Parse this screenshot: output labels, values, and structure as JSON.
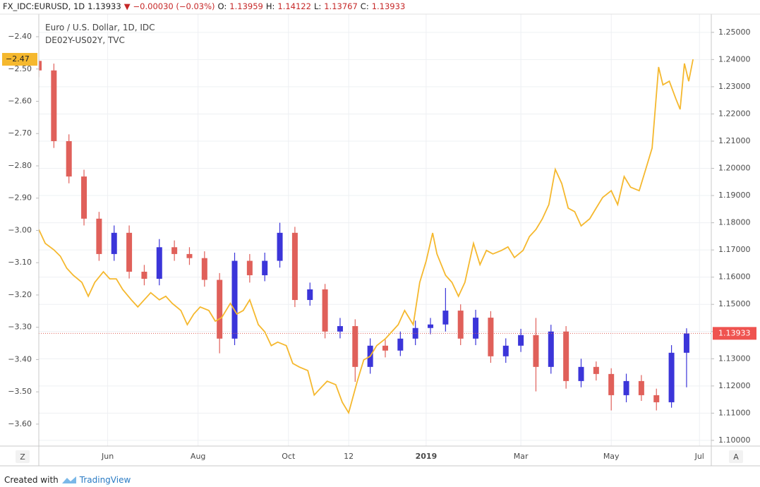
{
  "header": {
    "symbol": "FX_IDC:EURUSD, 1D",
    "price": "1.13933",
    "arrow": "▼",
    "change": "−0.00030 (−0.03%)",
    "o_label": "O:",
    "o": "1.13959",
    "h_label": "H:",
    "h": "1.14122",
    "l_label": "L:",
    "l": "1.13767",
    "c_label": "C:",
    "c": "1.13933"
  },
  "buttons": {
    "left": "Z",
    "right": "A"
  },
  "footer": {
    "text": "Created with",
    "brand": "TradingView"
  },
  "chart_data": {
    "type": "candlestick",
    "xlim": [
      0,
      312.5
    ],
    "xticks": [
      {
        "value": 32,
        "label": "Jun"
      },
      {
        "value": 74,
        "label": "Aug"
      },
      {
        "value": 116,
        "label": "Oct"
      },
      {
        "value": 144,
        "label": "12"
      },
      {
        "value": 180,
        "label": "2019"
      },
      {
        "value": 224,
        "label": "Mar"
      },
      {
        "value": 266,
        "label": "May"
      },
      {
        "value": 307,
        "label": "Jul"
      }
    ],
    "ylim": [
      -3.668,
      -2.33
    ],
    "yticks": [
      {
        "value": -2.4,
        "label": "−2.40"
      },
      {
        "value": -2.5,
        "label": "−2.50"
      },
      {
        "value": -2.6,
        "label": "−2.60"
      },
      {
        "value": -2.7,
        "label": "−2.70"
      },
      {
        "value": -2.8,
        "label": "−2.80"
      },
      {
        "value": -2.9,
        "label": "−2.90"
      },
      {
        "value": -3.0,
        "label": "−3.00"
      },
      {
        "value": -3.1,
        "label": "−3.10"
      },
      {
        "value": -3.2,
        "label": "−3.20"
      },
      {
        "value": -3.3,
        "label": "−3.30"
      },
      {
        "value": -3.4,
        "label": "−3.40"
      },
      {
        "value": -3.5,
        "label": "−3.50"
      },
      {
        "value": -3.6,
        "label": "−3.60"
      }
    ],
    "y2lim": [
      1.0979,
      1.2567
    ],
    "y2ticks": [
      {
        "value": 1.25,
        "label": "1.25000"
      },
      {
        "value": 1.24,
        "label": "1.24000"
      },
      {
        "value": 1.23,
        "label": "1.23000"
      },
      {
        "value": 1.22,
        "label": "1.22000"
      },
      {
        "value": 1.21,
        "label": "1.21000"
      },
      {
        "value": 1.2,
        "label": "1.20000"
      },
      {
        "value": 1.19,
        "label": "1.19000"
      },
      {
        "value": 1.18,
        "label": "1.18000"
      },
      {
        "value": 1.17,
        "label": "1.17000"
      },
      {
        "value": 1.16,
        "label": "1.16000"
      },
      {
        "value": 1.15,
        "label": "1.15000"
      },
      {
        "value": 1.14,
        "label": "1.14000"
      },
      {
        "value": 1.13,
        "label": "1.13000"
      },
      {
        "value": 1.12,
        "label": "1.12000"
      },
      {
        "value": 1.11,
        "label": "1.11000"
      },
      {
        "value": 1.1,
        "label": "1.10000"
      }
    ],
    "grid": true,
    "series": [
      {
        "name": "Euro / U.S. Dollar, 1D, IDC",
        "axis": "y2",
        "up_color": "#3b35d9",
        "down_color": "#e0605a",
        "last": {
          "value": 1.13933,
          "label": "1.13933"
        },
        "x": [
          0,
          7,
          14,
          21,
          28,
          35,
          42,
          49,
          56,
          63,
          70,
          77,
          84,
          91,
          98,
          105,
          112,
          119,
          126,
          133,
          140,
          147,
          154,
          161,
          168,
          175,
          182,
          189,
          196,
          203,
          210,
          217,
          224,
          231,
          238,
          245,
          252,
          259,
          266,
          273,
          280,
          287,
          294,
          301
        ],
        "open": [
          1.2395,
          1.236,
          1.21,
          1.197,
          1.1815,
          1.1685,
          1.1763,
          1.162,
          1.1594,
          1.171,
          1.1685,
          1.167,
          1.159,
          1.1374,
          1.166,
          1.1607,
          1.166,
          1.1763,
          1.1516,
          1.1555,
          1.14,
          1.142,
          1.127,
          1.1348,
          1.133,
          1.1374,
          1.1413,
          1.1426,
          1.1477,
          1.1374,
          1.1451,
          1.1309,
          1.1348,
          1.1387,
          1.127,
          1.14,
          1.1218,
          1.127,
          1.1244,
          1.1166,
          1.1218,
          1.1166,
          1.114,
          1.1322
        ],
        "high": [
          1.24,
          1.2385,
          1.2125,
          1.1995,
          1.184,
          1.179,
          1.179,
          1.1645,
          1.174,
          1.1735,
          1.171,
          1.1695,
          1.1615,
          1.169,
          1.1685,
          1.169,
          1.18,
          1.1785,
          1.158,
          1.1575,
          1.145,
          1.1445,
          1.1375,
          1.137,
          1.14,
          1.144,
          1.145,
          1.156,
          1.15,
          1.148,
          1.1475,
          1.1375,
          1.141,
          1.145,
          1.1425,
          1.142,
          1.13,
          1.129,
          1.1265,
          1.1245,
          1.124,
          1.119,
          1.135,
          1.1412
        ],
        "low": [
          1.2335,
          1.2075,
          1.1945,
          1.179,
          1.166,
          1.166,
          1.1595,
          1.157,
          1.157,
          1.166,
          1.1645,
          1.1565,
          1.132,
          1.135,
          1.158,
          1.1585,
          1.1635,
          1.149,
          1.1495,
          1.1375,
          1.1375,
          1.1215,
          1.1245,
          1.1305,
          1.131,
          1.135,
          1.139,
          1.14,
          1.135,
          1.135,
          1.1285,
          1.1285,
          1.1325,
          1.118,
          1.1245,
          1.119,
          1.1195,
          1.122,
          1.111,
          1.114,
          1.1145,
          1.111,
          1.112,
          1.1195
        ],
        "close": [
          1.236,
          1.21,
          1.197,
          1.1815,
          1.1685,
          1.1763,
          1.162,
          1.1594,
          1.171,
          1.1685,
          1.167,
          1.159,
          1.1374,
          1.166,
          1.1607,
          1.166,
          1.1763,
          1.1516,
          1.1555,
          1.14,
          1.142,
          1.127,
          1.1348,
          1.133,
          1.1374,
          1.1413,
          1.1426,
          1.1477,
          1.1374,
          1.1451,
          1.1309,
          1.1348,
          1.1387,
          1.127,
          1.14,
          1.1218,
          1.127,
          1.1244,
          1.1166,
          1.1218,
          1.1166,
          1.114,
          1.1322,
          1.1393
        ]
      },
      {
        "name": "DE02Y-US02Y, TVC",
        "type": "line",
        "color": "#f5b82e",
        "last": {
          "value": -2.47,
          "label": "−2.47"
        },
        "x": [
          0,
          3,
          7,
          10,
          13,
          16,
          20,
          23,
          26,
          30,
          33,
          36,
          39,
          43,
          46,
          49,
          52,
          56,
          59,
          62,
          66,
          69,
          72,
          75,
          79,
          82,
          85,
          89,
          92,
          95,
          98,
          102,
          105,
          108,
          111,
          115,
          118,
          121,
          125,
          128,
          131,
          134,
          138,
          141,
          144,
          148,
          151,
          154,
          157,
          161,
          164,
          167,
          170,
          174,
          177,
          180,
          183,
          185,
          189,
          192,
          195,
          198,
          202,
          205,
          208,
          211,
          215,
          218,
          221,
          225,
          228,
          231,
          234,
          237,
          240,
          243,
          246,
          249,
          252,
          256,
          259,
          262,
          266,
          269,
          272,
          275,
          279,
          282,
          285,
          288,
          290,
          293,
          296,
          298,
          300,
          302,
          304
        ],
        "values": [
          -2.997,
          -3.04,
          -3.06,
          -3.08,
          -3.117,
          -3.139,
          -3.161,
          -3.204,
          -3.161,
          -3.128,
          -3.15,
          -3.15,
          -3.183,
          -3.215,
          -3.237,
          -3.215,
          -3.193,
          -3.215,
          -3.204,
          -3.226,
          -3.248,
          -3.292,
          -3.259,
          -3.237,
          -3.248,
          -3.281,
          -3.27,
          -3.226,
          -3.259,
          -3.248,
          -3.215,
          -3.292,
          -3.314,
          -3.357,
          -3.346,
          -3.357,
          -3.412,
          -3.423,
          -3.434,
          -3.51,
          -3.488,
          -3.467,
          -3.478,
          -3.532,
          -3.565,
          -3.467,
          -3.401,
          -3.39,
          -3.357,
          -3.336,
          -3.314,
          -3.292,
          -3.248,
          -3.292,
          -3.161,
          -3.095,
          -3.008,
          -3.073,
          -3.139,
          -3.161,
          -3.204,
          -3.161,
          -3.04,
          -3.106,
          -3.062,
          -3.073,
          -3.062,
          -3.051,
          -3.084,
          -3.062,
          -3.019,
          -2.997,
          -2.964,
          -2.92,
          -2.811,
          -2.855,
          -2.931,
          -2.942,
          -2.986,
          -2.964,
          -2.931,
          -2.898,
          -2.877,
          -2.92,
          -2.833,
          -2.866,
          -2.877,
          -2.811,
          -2.745,
          -2.494,
          -2.549,
          -2.538,
          -2.592,
          -2.625,
          -2.483,
          -2.538,
          -2.47
        ]
      }
    ]
  }
}
